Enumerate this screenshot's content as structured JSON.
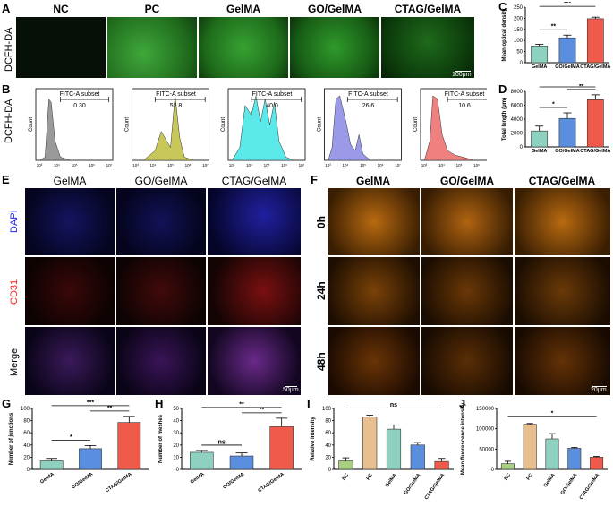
{
  "panel_letters": {
    "A": "A",
    "B": "B",
    "C": "C",
    "D": "D",
    "E": "E",
    "F": "F",
    "G": "G",
    "H": "H",
    "I": "I",
    "J": "J"
  },
  "panelA": {
    "row_label": "DCFH-DA",
    "columns": [
      "NC",
      "PC",
      "GelMA",
      "GO/GelMA",
      "CTAG/GelMA"
    ],
    "column_colors": [
      "#0a100a",
      "#2f8a2a",
      "#2c9a28",
      "#2a8f26",
      "#1a5a18"
    ],
    "scale_bar": "100μm"
  },
  "panelB": {
    "row_label": "DCFH-DA",
    "gate_label": "FITC-A subset",
    "y_axis": "Count",
    "values": [
      "0.30",
      "52.8",
      "40.0",
      "26.6",
      "10.6"
    ],
    "hist_colors": [
      "#9a9a9a",
      "#c8c85a",
      "#5ae8e8",
      "#9a9ae8",
      "#f08080"
    ],
    "x_ticks": [
      "10³",
      "10⁴",
      "10⁵",
      "10⁶",
      "10⁷"
    ]
  },
  "panelE": {
    "columns": [
      "GelMA",
      "GO/GelMA",
      "CTAG/GelMA"
    ],
    "rows": [
      "DAPI",
      "CD31",
      "Merge"
    ],
    "row_colors": [
      "#2020ff",
      "#ff2020",
      "#000000"
    ],
    "scale_bar": "50μm"
  },
  "panelF": {
    "columns": [
      "GelMA",
      "GO/GelMA",
      "CTAG/GelMA"
    ],
    "rows": [
      "0h",
      "24h",
      "48h"
    ],
    "scale_bar": "20μm"
  },
  "chart_data": [
    {
      "id": "C",
      "type": "bar",
      "categories": [
        "GelMA",
        "GO/GelMA",
        "CTAG/GelMA"
      ],
      "values": [
        75,
        112,
        198
      ],
      "errors": [
        8,
        12,
        7
      ],
      "colors": [
        "#8fd1c0",
        "#5a8fe0",
        "#f05a4a"
      ],
      "ylabel": "Mean optical density",
      "ylim": [
        0,
        250
      ],
      "yticks": [
        "0",
        "50",
        "100",
        "150",
        "200",
        "250"
      ],
      "significance": [
        {
          "from": 0,
          "to": 1,
          "label": "**"
        },
        {
          "from": 0,
          "to": 2,
          "label": "***"
        }
      ]
    },
    {
      "id": "D",
      "type": "bar",
      "categories": [
        "GelMA",
        "GO/GelMA",
        "CTAG/GelMA"
      ],
      "values": [
        2300,
        4100,
        6800
      ],
      "errors": [
        700,
        800,
        700
      ],
      "colors": [
        "#8fd1c0",
        "#5a8fe0",
        "#f05a4a"
      ],
      "ylabel": "Total length (μm)",
      "ylim": [
        0,
        8000
      ],
      "yticks": [
        "0",
        "2000",
        "4000",
        "6000",
        "8000"
      ],
      "significance": [
        {
          "from": 0,
          "to": 1,
          "label": "*"
        },
        {
          "from": 1,
          "to": 2,
          "label": "**"
        },
        {
          "from": 0,
          "to": 2,
          "label": "***"
        }
      ]
    },
    {
      "id": "G",
      "type": "bar",
      "categories": [
        "GelMA",
        "GO/GelMA",
        "CTAG/GelMA"
      ],
      "values": [
        14,
        34,
        77
      ],
      "errors": [
        4,
        5,
        10
      ],
      "colors": [
        "#8fd1c0",
        "#5a8fe0",
        "#f05a4a"
      ],
      "ylabel": "Number of junctions",
      "ylim": [
        0,
        100
      ],
      "yticks": [
        "0",
        "20",
        "40",
        "60",
        "80",
        "100"
      ],
      "significance": [
        {
          "from": 0,
          "to": 1,
          "label": "*"
        },
        {
          "from": 1,
          "to": 2,
          "label": "**"
        },
        {
          "from": 0,
          "to": 2,
          "label": "***"
        }
      ]
    },
    {
      "id": "H",
      "type": "bar",
      "categories": [
        "GelMA",
        "GO/GelMA",
        "CTAG/GelMA"
      ],
      "values": [
        14,
        11,
        35
      ],
      "errors": [
        1.5,
        2.5,
        7
      ],
      "colors": [
        "#8fd1c0",
        "#5a8fe0",
        "#f05a4a"
      ],
      "ylabel": "Number of meshes",
      "ylim": [
        0,
        50
      ],
      "yticks": [
        "0",
        "10",
        "20",
        "30",
        "40",
        "50"
      ],
      "significance": [
        {
          "from": 0,
          "to": 1,
          "label": "ns"
        },
        {
          "from": 1,
          "to": 2,
          "label": "**"
        },
        {
          "from": 0,
          "to": 2,
          "label": "**"
        }
      ]
    },
    {
      "id": "I",
      "type": "bar",
      "categories": [
        "NC",
        "PC",
        "GelMA",
        "GO/GelMA",
        "CTAG/GelMA"
      ],
      "values": [
        14,
        86,
        66,
        40,
        13
      ],
      "errors": [
        5,
        3,
        7,
        4,
        5
      ],
      "colors": [
        "#a8d080",
        "#e8c090",
        "#8fd1c0",
        "#5a8fe0",
        "#f05a4a"
      ],
      "ylabel": "Relative Intensity",
      "ylim": [
        0,
        100
      ],
      "yticks": [
        "0",
        "20",
        "40",
        "60",
        "80",
        "100"
      ],
      "significance": [
        {
          "from": 0,
          "to": 4,
          "label": "ns"
        }
      ]
    },
    {
      "id": "J",
      "type": "bar",
      "categories": [
        "NC",
        "PC",
        "GelMA",
        "GO/GelMA",
        "CTAG/GelMA"
      ],
      "values": [
        14000,
        111000,
        75000,
        52000,
        30000
      ],
      "errors": [
        6000,
        2000,
        13000,
        2000,
        2000
      ],
      "colors": [
        "#a8d080",
        "#e8c090",
        "#8fd1c0",
        "#5a8fe0",
        "#f05a4a"
      ],
      "ylabel": "Mean fluorescence intensity",
      "ylim": [
        0,
        150000
      ],
      "yticks": [
        "0",
        "50000",
        "100000",
        "150000"
      ],
      "significance": [
        {
          "from": 0,
          "to": 4,
          "label": "*"
        }
      ]
    }
  ]
}
